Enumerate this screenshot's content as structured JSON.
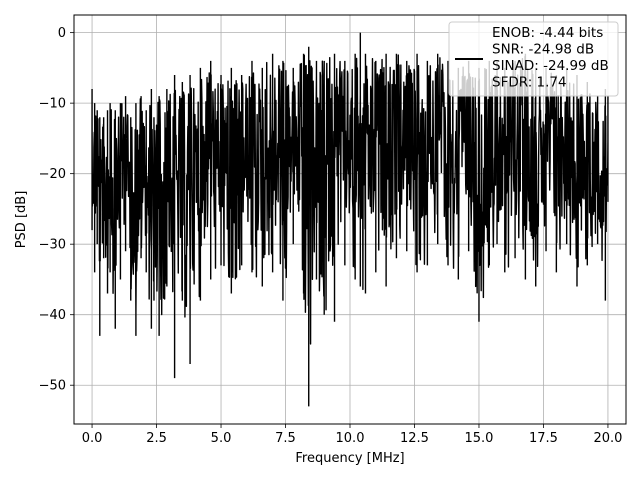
{
  "chart_data": {
    "type": "line",
    "title": "",
    "xlabel": "Frequency [MHz]",
    "ylabel": "PSD [dB]",
    "xlim": [
      -0.7,
      20.7
    ],
    "ylim": [
      -55.5,
      2.5
    ],
    "xticks": [
      0.0,
      2.5,
      5.0,
      7.5,
      10.0,
      12.5,
      15.0,
      17.5,
      20.0
    ],
    "xtick_labels": [
      "0.0",
      "2.5",
      "5.0",
      "7.5",
      "10.0",
      "12.5",
      "15.0",
      "17.5",
      "20.0"
    ],
    "yticks": [
      0,
      -10,
      -20,
      -30,
      -40,
      -50
    ],
    "ytick_labels": [
      "0",
      "−10",
      "−20",
      "−30",
      "−40",
      "−50"
    ],
    "grid": true,
    "legend": {
      "placement": "top-right",
      "entries": [
        "ENOB: -4.44 bits",
        "SNR: -24.98 dB",
        "SINAD: -24.99 dB",
        "SFDR: 1.74"
      ]
    },
    "series": [
      {
        "color": "#000000",
        "x": [
          0.0,
          0.1,
          0.2,
          0.3,
          0.45,
          0.6,
          0.7,
          0.9,
          1.1,
          1.3,
          1.5,
          1.7,
          1.9,
          2.1,
          2.3,
          2.4,
          2.6,
          2.9,
          3.2,
          3.5,
          3.8,
          4.2,
          4.6,
          5.0,
          5.4,
          5.8,
          6.2,
          6.6,
          7.0,
          7.4,
          7.8,
          8.2,
          8.4,
          8.7,
          9.0,
          9.4,
          9.8,
          10.2,
          10.4,
          10.6,
          11.0,
          11.4,
          11.8,
          12.2,
          12.6,
          13.0,
          13.4,
          13.8,
          14.2,
          14.6,
          15.0,
          15.4,
          15.7,
          16.0,
          16.4,
          16.8,
          17.2,
          17.6,
          18.0,
          18.4,
          18.8,
          19.2,
          19.6,
          19.9,
          20.0
        ],
        "max": [
          -8,
          -10,
          -11,
          -12,
          -12,
          -11,
          -10,
          -11,
          -10,
          -9,
          -12,
          -10,
          -9,
          -11,
          -8,
          -12,
          -9,
          -8,
          -6,
          -7,
          -6,
          -5,
          -4,
          -6,
          -5,
          -6,
          -4,
          -5,
          -3,
          -4,
          -5,
          -3,
          -2,
          -4,
          -4,
          -3,
          -4,
          -3,
          0,
          -3,
          -4,
          -3,
          -3,
          -4,
          -3,
          -4,
          -3,
          -4,
          -5,
          -4,
          -5,
          -4,
          -4,
          -5,
          -4,
          -3,
          -5,
          -5,
          -6,
          -5,
          -6,
          -7,
          -9,
          -8,
          -9
        ],
        "min": [
          -28,
          -34,
          -30,
          -43,
          -32,
          -37,
          -34,
          -42,
          -35,
          -31,
          -38,
          -43,
          -32,
          -34,
          -42,
          -38,
          -43,
          -36,
          -49,
          -38,
          -47,
          -38,
          -35,
          -33,
          -37,
          -33,
          -34,
          -36,
          -34,
          -38,
          -30,
          -37,
          -53,
          -35,
          -40,
          -41,
          -33,
          -35,
          -36,
          -37,
          -34,
          -36,
          -32,
          -31,
          -34,
          -33,
          -30,
          -33,
          -35,
          -31,
          -41,
          -33,
          -30,
          -34,
          -32,
          -35,
          -36,
          -31,
          -34,
          -30,
          -36,
          -33,
          -30,
          -38,
          -24
        ]
      }
    ]
  }
}
